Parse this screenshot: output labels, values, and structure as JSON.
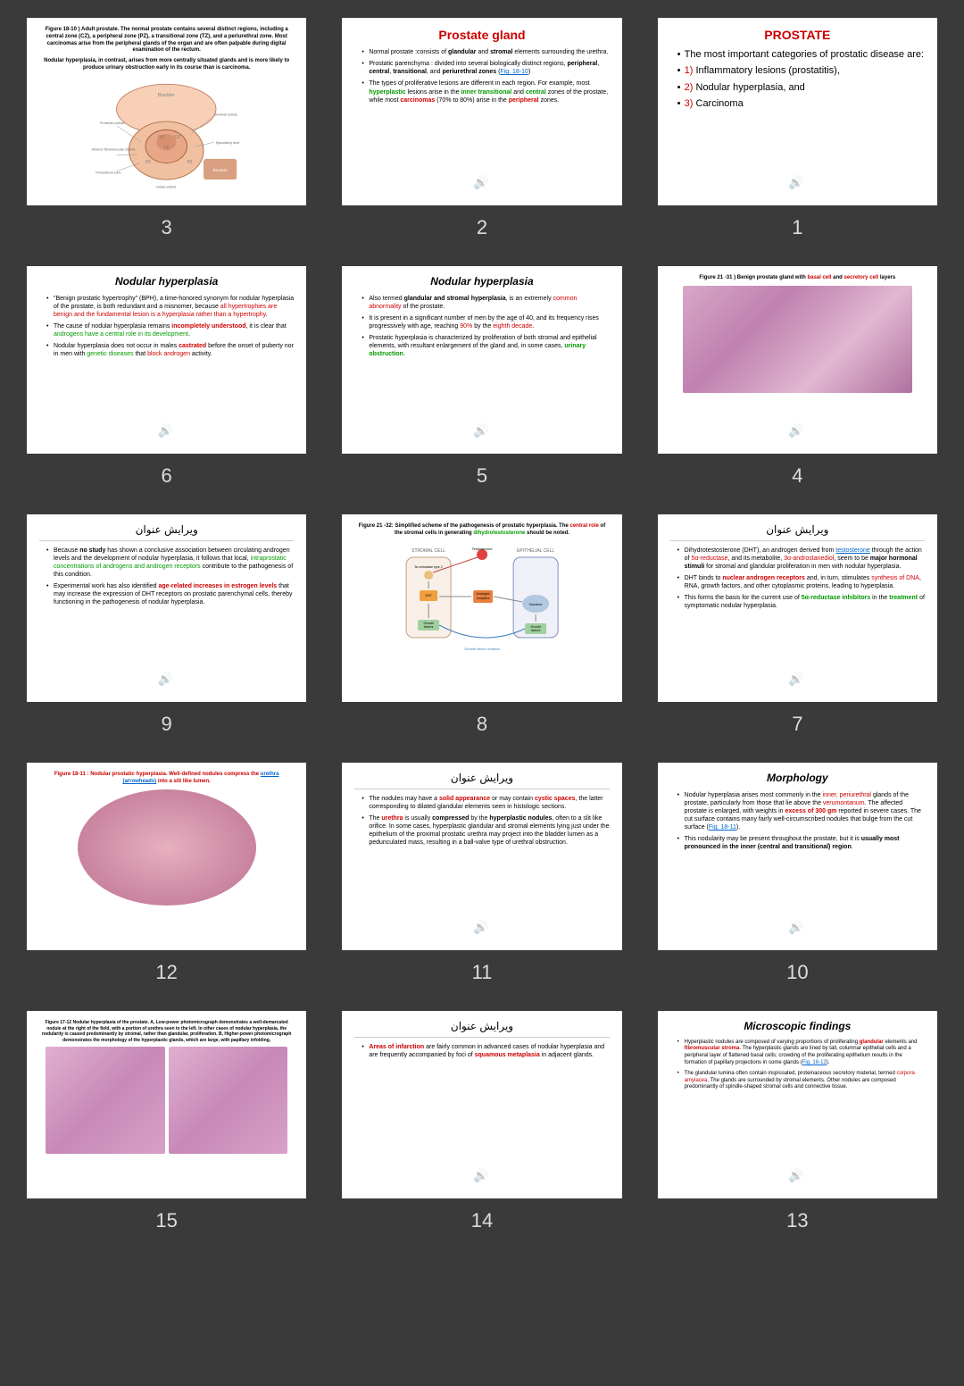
{
  "slides": [
    {
      "num": "3",
      "type": "figure",
      "caption": "Figure 18-10 ) Adult prostate. The normal prostate contains several distinct regions, including a central zone (CZ), a peripheral zone (PZ), a transitional zone (TZ), and a periurethral zone. Most carcinomas arise from the peripheral glands of the organ and are often palpable during digital examination of the rectum.",
      "caption2": "Nodular hyperplasia, in contrast, arises from more centrally situated glands and is more likely to produce urinary obstruction early in its course than is carcinoma."
    },
    {
      "num": "2",
      "type": "text",
      "title": "Prostate gland",
      "titleClass": "title-red",
      "bullets": [
        {
          "parts": [
            {
              "t": "Normal prostate :consists of "
            },
            {
              "t": "glandular",
              "c": "bold"
            },
            {
              "t": " and "
            },
            {
              "t": "stromal",
              "c": "bold"
            },
            {
              "t": " elements surrounding the urethra."
            }
          ]
        },
        {
          "parts": [
            {
              "t": "Prostatic parenchyma : divided into several biologically distinct regions, "
            },
            {
              "t": "peripheral",
              "c": "bold"
            },
            {
              "t": ", "
            },
            {
              "t": "central",
              "c": "bold"
            },
            {
              "t": ", "
            },
            {
              "t": "transitional",
              "c": "bold"
            },
            {
              "t": ", and "
            },
            {
              "t": "periurethral zones",
              "c": "bold"
            },
            {
              "t": " ("
            },
            {
              "t": "Fig. 18-10",
              "c": "blue"
            },
            {
              "t": ")"
            }
          ]
        },
        {
          "parts": [
            {
              "t": "The types of proliferative lesions are different in each region. For example, most "
            },
            {
              "t": "hyperplastic",
              "c": "green bold"
            },
            {
              "t": " lesions arise in the "
            },
            {
              "t": "inner transitional",
              "c": "green bold"
            },
            {
              "t": " and "
            },
            {
              "t": "central",
              "c": "green bold"
            },
            {
              "t": " zones of the prostate, while most "
            },
            {
              "t": "carcinomas",
              "c": "red bold"
            },
            {
              "t": " (70% to 80%) arise in the "
            },
            {
              "t": "peripheral",
              "c": "red bold"
            },
            {
              "t": " zones."
            }
          ]
        }
      ]
    },
    {
      "num": "1",
      "type": "text",
      "title": "PROSTATE",
      "titleClass": "title-red",
      "bigFont": true,
      "bullets": [
        {
          "parts": [
            {
              "t": "The most important categories of prostatic disease are:"
            }
          ]
        },
        {
          "parts": [
            {
              "t": "1) ",
              "c": "red"
            },
            {
              "t": "Inflammatory lesions (prostatitis),"
            }
          ]
        },
        {
          "parts": [
            {
              "t": "2) ",
              "c": "red"
            },
            {
              "t": "Nodular hyperplasia, and"
            }
          ]
        },
        {
          "parts": [
            {
              "t": "3) ",
              "c": "red"
            },
            {
              "t": "Carcinoma"
            }
          ]
        }
      ]
    },
    {
      "num": "6",
      "type": "text",
      "title": "Nodular hyperplasia",
      "titleClass": "title-black",
      "bullets": [
        {
          "parts": [
            {
              "t": "\"Benign prostatic hypertrophy\" (BPH), a time-honored synonym for nodular hyperplasia of the prostate, is both redundant and a misnomer, because "
            },
            {
              "t": "all hypertrophies are benign and the fundamental lesion is a hyperplasia rather than a hypertrophy",
              "c": "red"
            },
            {
              "t": "."
            }
          ]
        },
        {
          "parts": [
            {
              "t": "The cause of nodular hyperplasia remains "
            },
            {
              "t": "incompletely understood",
              "c": "red bold"
            },
            {
              "t": ", it is clear that "
            },
            {
              "t": "androgens have a central role in its development",
              "c": "green"
            },
            {
              "t": "."
            }
          ]
        },
        {
          "parts": [
            {
              "t": "Nodular hyperplasia does not occur in males "
            },
            {
              "t": "castrated",
              "c": "red bold"
            },
            {
              "t": " before the onset of puberty nor in men with "
            },
            {
              "t": "genetic diseases",
              "c": "green"
            },
            {
              "t": " that "
            },
            {
              "t": "block androgen",
              "c": "red"
            },
            {
              "t": " activity."
            }
          ]
        }
      ]
    },
    {
      "num": "5",
      "type": "text",
      "title": "Nodular hyperplasia",
      "titleClass": "title-black",
      "bullets": [
        {
          "parts": [
            {
              "t": "Also termed "
            },
            {
              "t": "glandular and stromal hyperplasia",
              "c": "bold"
            },
            {
              "t": ", is an extremely "
            },
            {
              "t": "common abnormality",
              "c": "red"
            },
            {
              "t": " of the prostate."
            }
          ]
        },
        {
          "parts": [
            {
              "t": "It is present in a significant number of men by the age of 40, and its frequency rises progressively with age, reaching "
            },
            {
              "t": "90%",
              "c": "red"
            },
            {
              "t": " by the "
            },
            {
              "t": "eighth decade",
              "c": "red"
            },
            {
              "t": "."
            }
          ]
        },
        {
          "parts": [
            {
              "t": "Prostatic hyperplasia is characterized by proliferation of both stromal and epithelial elements, with resultant enlargement of the gland and, in some cases, "
            },
            {
              "t": "urinary obstruction",
              "c": "green bold"
            },
            {
              "t": "."
            }
          ]
        }
      ]
    },
    {
      "num": "4",
      "type": "histology",
      "caption": "Figure 21 -31 ) Benign prostate gland with ",
      "captionRed": "basal cell",
      "captionMid": " and ",
      "captionRed2": "secretory cell",
      "captionEnd": " layers"
    },
    {
      "num": "9",
      "type": "text",
      "title": "ویرایش عنوان",
      "titleClass": "title-arabic",
      "bullets": [
        {
          "parts": [
            {
              "t": "Because "
            },
            {
              "t": "no study",
              "c": "bold"
            },
            {
              "t": " has shown a conclusive association between circulating androgen levels and the development of nodular hyperplasia, it follows that local, "
            },
            {
              "t": "intraprostatic concentrations of androgens and androgen receptors",
              "c": "green"
            },
            {
              "t": " contribute to the pathogenesis of this condition."
            }
          ]
        },
        {
          "parts": [
            {
              "t": "Experimental work has also identified "
            },
            {
              "t": "age-related increases in estrogen levels",
              "c": "red bold"
            },
            {
              "t": " that may increase the expression of DHT receptors on prostatic parenchymal cells, thereby functioning in the pathogenesis of nodular hyperplasia."
            }
          ]
        }
      ]
    },
    {
      "num": "8",
      "type": "schema",
      "caption": "Figure 21 -32: Simplified scheme of the pathogenesis of prostatic hyperplasia. The ",
      "captionRed": "central role",
      "captionMid": " of the stromal cells in generating ",
      "captionGreen": "dihydrotestosterone",
      "captionEnd": " should be noted."
    },
    {
      "num": "7",
      "type": "text",
      "title": "ویرایش عنوان",
      "titleClass": "title-arabic",
      "bullets": [
        {
          "parts": [
            {
              "t": "Dihydrotestosterone (DHT), an androgen derived from "
            },
            {
              "t": "testosterone",
              "c": "blue"
            },
            {
              "t": " through the action of "
            },
            {
              "t": "5α-reductase",
              "c": "red"
            },
            {
              "t": ", and its metabolite, "
            },
            {
              "t": "3α-androstanediol",
              "c": "red"
            },
            {
              "t": ", seem to be "
            },
            {
              "t": "major hormonal stimuli",
              "c": "bold"
            },
            {
              "t": " for stromal and glandular proliferation in men with nodular hyperplasia."
            }
          ]
        },
        {
          "parts": [
            {
              "t": "DHT binds to "
            },
            {
              "t": "nuclear androgen receptors",
              "c": "red bold"
            },
            {
              "t": " and, in turn, stimulates "
            },
            {
              "t": "synthesis of DNA",
              "c": "red"
            },
            {
              "t": ", RNA, growth factors, and other cytoplasmic proteins, leading to hyperplasia."
            }
          ]
        },
        {
          "parts": [
            {
              "t": "This forms the basis for the current use of "
            },
            {
              "t": "5α-reductase inhibitors",
              "c": "green bold"
            },
            {
              "t": " in the "
            },
            {
              "t": "treatment",
              "c": "green bold"
            },
            {
              "t": " of symptomatic nodular hyperplasia."
            }
          ]
        }
      ]
    },
    {
      "num": "12",
      "type": "gross",
      "caption": "Figure 18-11 : Nodular prostatic hyperplasia. Well-defined nodules compress the ",
      "captionBlue": "urethra (arrowheads)",
      "captionEnd": " into a slit like lumen.",
      "captionClass": "red"
    },
    {
      "num": "11",
      "type": "text",
      "title": "ویرایش عنوان",
      "titleClass": "title-arabic",
      "bullets": [
        {
          "parts": [
            {
              "t": "The nodules may have a "
            },
            {
              "t": "solid appearance",
              "c": "red bold"
            },
            {
              "t": " or may contain "
            },
            {
              "t": "cystic spaces",
              "c": "red bold"
            },
            {
              "t": ", the latter corresponding to dilated glandular elements seen in histologic sections."
            }
          ]
        },
        {
          "parts": [
            {
              "t": "The "
            },
            {
              "t": "urethra",
              "c": "red bold"
            },
            {
              "t": " is usually "
            },
            {
              "t": "compressed",
              "c": "bold"
            },
            {
              "t": " by the "
            },
            {
              "t": "hyperplastic nodules",
              "c": "bold"
            },
            {
              "t": ", often to a slit like orifice. In some cases, hyperplastic glandular and stromal elements lying just under the epithelium of the proximal prostatic urethra may project into the bladder lumen as a pedunculated mass, resulting in a ball-valve type of urethral obstruction."
            }
          ]
        }
      ]
    },
    {
      "num": "10",
      "type": "text",
      "title": "Morphology",
      "titleClass": "title-black",
      "bullets": [
        {
          "parts": [
            {
              "t": "Nodular hyperplasia arises most commonly in the "
            },
            {
              "t": "inner, periurethral",
              "c": "red"
            },
            {
              "t": " glands of the prostate, particularly from those that lie above the "
            },
            {
              "t": "verumontanum",
              "c": "red"
            },
            {
              "t": ". The affected prostate is enlarged, with weights in "
            },
            {
              "t": "excess of 300 gm",
              "c": "red bold"
            },
            {
              "t": " reported in severe cases. The cut surface contains many fairly well-circumscribed nodules that bulge from the cut surface ("
            },
            {
              "t": "Fig. 18-11",
              "c": "blue"
            },
            {
              "t": ")."
            }
          ]
        },
        {
          "parts": [
            {
              "t": "This nodularity may be present throughout the prostate, but it is "
            },
            {
              "t": "usually most pronounced in the inner (central and transitional) region",
              "c": "bold"
            },
            {
              "t": "."
            }
          ]
        }
      ]
    },
    {
      "num": "15",
      "type": "dual-histology",
      "caption": "Figure 17-12 Nodular hyperplasia of the prostate. A, Low-power photomicrograph demonstrates a well-demarcated nodule at the right of the field, with a portion of urethra seen to the left. In other cases of nodular hyperplasia, the nodularity is caused predominantly by stromal, rather than glandular, proliferation. B, Higher-power photomicrograph demonstrates the morphology of the hyperplastic glands, which are large, with papillary infolding."
    },
    {
      "num": "14",
      "type": "text",
      "title": "ویرایش عنوان",
      "titleClass": "title-arabic",
      "bullets": [
        {
          "parts": [
            {
              "t": "Areas of infarction",
              "c": "red bold"
            },
            {
              "t": " are fairly common in advanced cases of nodular hyperplasia and are frequently accompanied by foci of "
            },
            {
              "t": "squamous metaplasia",
              "c": "red bold"
            },
            {
              "t": " in adjacent glands."
            }
          ]
        }
      ]
    },
    {
      "num": "13",
      "type": "text",
      "title": "Microscopic findings",
      "titleClass": "title-black",
      "smallFont": true,
      "bullets": [
        {
          "parts": [
            {
              "t": "Hyperplastic nodules are composed of varying proportions of proliferating "
            },
            {
              "t": "glandular",
              "c": "red bold"
            },
            {
              "t": " elements and "
            },
            {
              "t": "fibromuscular stroma",
              "c": "red bold"
            },
            {
              "t": ". The hyperplastic glands are lined by tall, columnar epithelial cells and a peripheral layer of flattened basal cells; crowding of the proliferating epithelium results in the formation of papillary projections in some glands ("
            },
            {
              "t": "Fig. 18-12",
              "c": "blue"
            },
            {
              "t": ")."
            }
          ]
        },
        {
          "parts": [
            {
              "t": "The glandular lumina often contain inspissated, proteinaceous secretory material, termed "
            },
            {
              "t": "corpora amylacea",
              "c": "red"
            },
            {
              "t": ". The glands are surrounded by stromal elements. Other nodules are composed predominantly of spindle-shaped stromal cells and connective tissue."
            }
          ]
        }
      ]
    }
  ]
}
